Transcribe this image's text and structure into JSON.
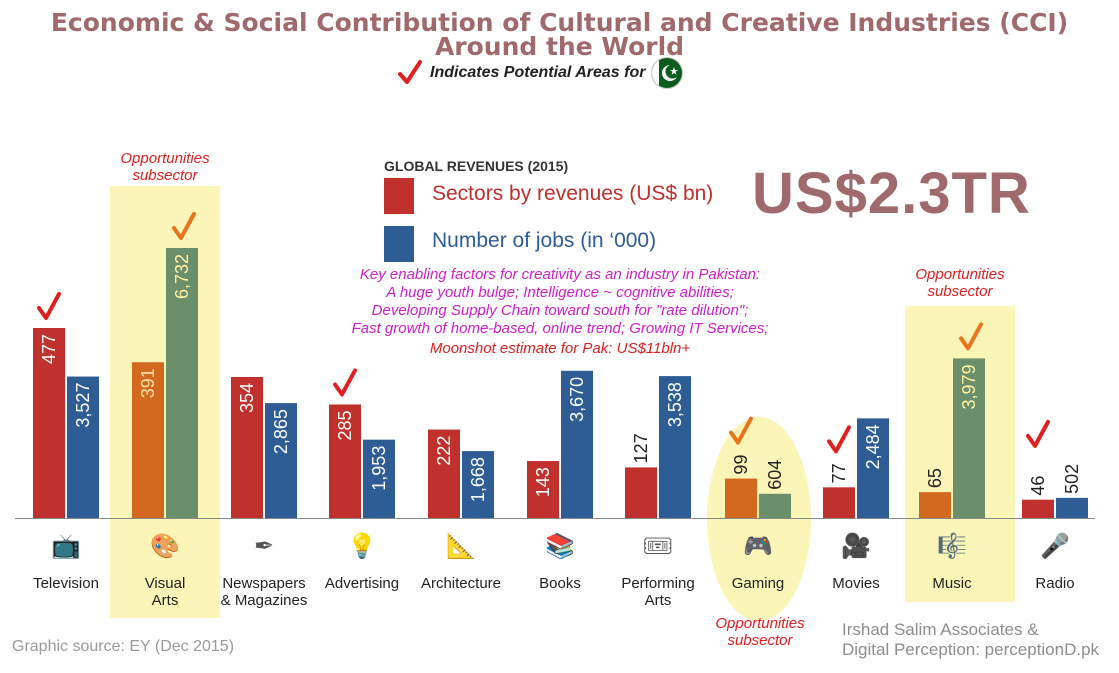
{
  "header": {
    "title_line1": "Economic & Social Contribution of Cultural and Creative Industries (CCI)",
    "title_line2": "Around the World",
    "subtitle": "Indicates Potential Areas for"
  },
  "legend": {
    "title": "GLOBAL REVENUES (2015)",
    "revenues_label": "Sectors by revenues  (US$ bn)",
    "jobs_label": "Number of jobs  (in ‘000)",
    "revenue_color": "#c0302c",
    "jobs_color": "#2e5c95"
  },
  "total": "US$2.3TR",
  "factors": {
    "lines": [
      "Key enabling factors for creativity as an industry in Pakistan:",
      "A huge youth bulge; Intelligence ~ cognitive abilities;",
      "Developing Supply Chain toward south for \"rate dilution\";",
      "Fast growth of home-based, online trend; Growing IT Services;"
    ],
    "moonshot": "Moonshot estimate for Pak: US$11bln+"
  },
  "opportunities": {
    "line1": "Opportunities",
    "line2": "subsector"
  },
  "chart_data": {
    "type": "bar",
    "title": "GLOBAL REVENUES (2015)",
    "categories": [
      "Television",
      "Visual Arts",
      "Newspapers & Magazines",
      "Advertising",
      "Architecture",
      "Books",
      "Performing Arts",
      "Gaming",
      "Movies",
      "Music",
      "Radio"
    ],
    "category_lines": [
      [
        "Television"
      ],
      [
        "Visual",
        "Arts"
      ],
      [
        "Newspapers",
        "& Magazines"
      ],
      [
        "Advertising"
      ],
      [
        "Architecture"
      ],
      [
        "Books"
      ],
      [
        "Performing",
        "Arts"
      ],
      [
        "Gaming"
      ],
      [
        "Movies"
      ],
      [
        "Music"
      ],
      [
        "Radio"
      ]
    ],
    "series": [
      {
        "name": "Sectors by revenues  (US$ bn)",
        "values": [
          477,
          391,
          354,
          285,
          222,
          143,
          127,
          99,
          77,
          65,
          46
        ]
      },
      {
        "name": "Number of jobs  (in ‘000)",
        "values": [
          3527,
          6732,
          2865,
          1953,
          1668,
          3670,
          3538,
          604,
          2484,
          3979,
          502
        ]
      }
    ],
    "value_labels": {
      "revenues": [
        "477",
        "391",
        "354",
        "285",
        "222",
        "143",
        "127",
        "99",
        "77",
        "65",
        "46"
      ],
      "jobs": [
        "3,527",
        "6,732",
        "2,865",
        "1,953",
        "1,668",
        "3,670",
        "3,538",
        "604",
        "2,484",
        "3,979",
        "502"
      ]
    },
    "potential_areas": [
      "Television",
      "Visual Arts",
      "Advertising",
      "Gaming",
      "Movies",
      "Music",
      "Radio"
    ],
    "opportunity_subsectors": [
      "Visual Arts",
      "Gaming",
      "Music"
    ],
    "icons": [
      "tv-icon",
      "palette-icon",
      "pen-nib-icon",
      "lightbulb-icon",
      "compass-icon",
      "books-icon",
      "ticket-icon",
      "gamepad-icon",
      "film-camera-icon",
      "music-staff-icon",
      "microphone-icon"
    ],
    "highlight_colors": {
      "revenue": "#d2691e",
      "jobs": "#6b8e6b"
    },
    "legend_position": "top-center",
    "grid": false
  },
  "footer": {
    "source": "Graphic source: EY (Dec 2015)",
    "credit_line1": "Irshad Salim Associates &",
    "credit_line2": "Digital Perception: perceptionD.pk"
  }
}
